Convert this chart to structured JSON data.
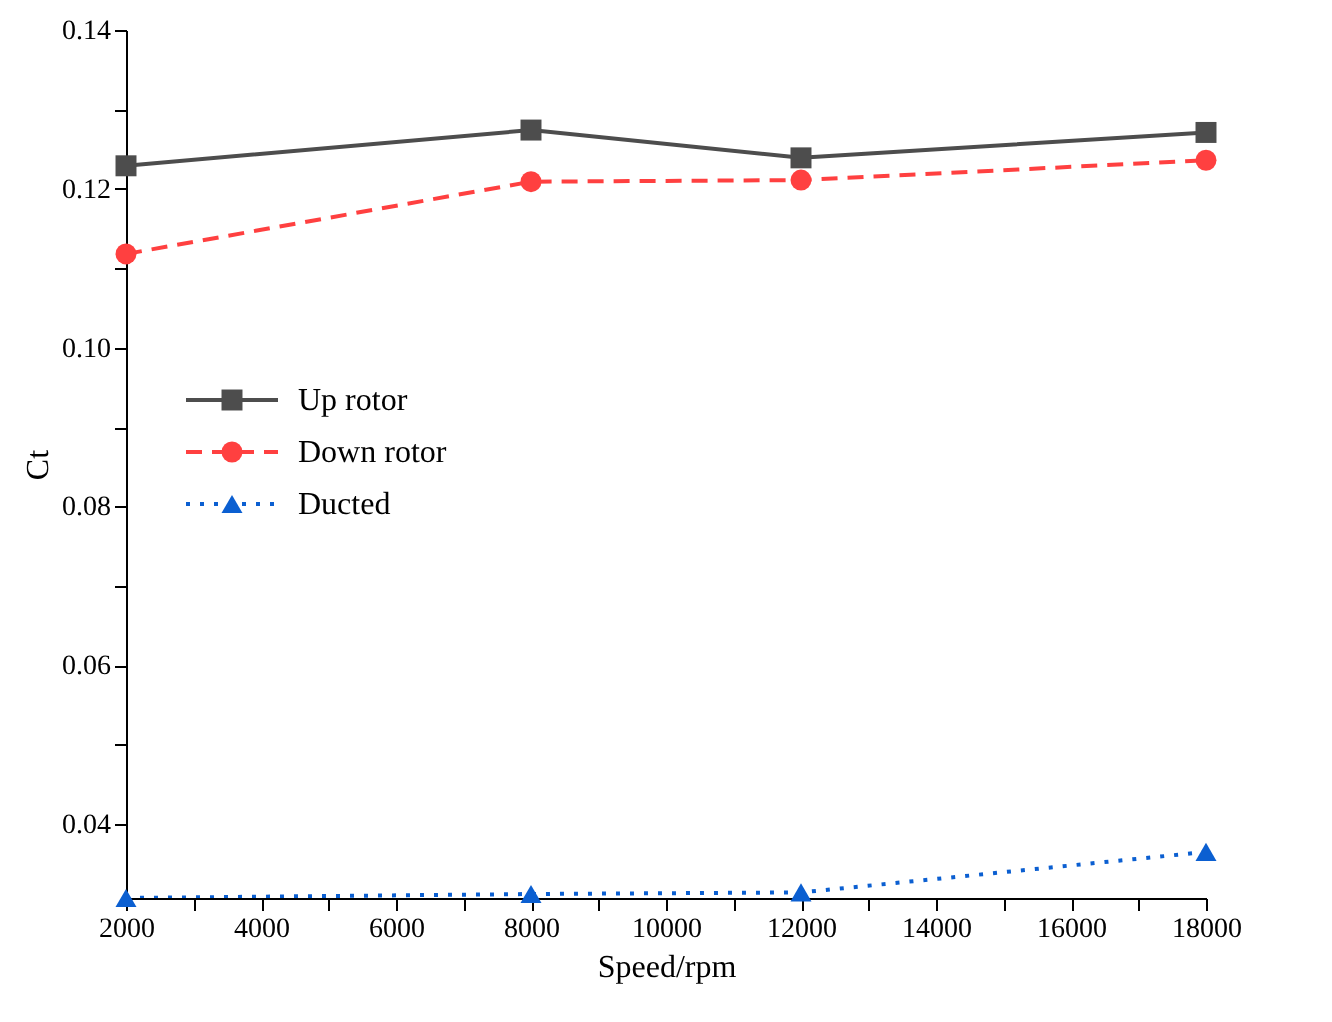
{
  "chart_data": {
    "type": "line",
    "xlabel": "Speed/rpm",
    "ylabel": "Ct",
    "x": [
      2000,
      8000,
      12000,
      18000
    ],
    "xlim": [
      2000,
      18000
    ],
    "ylim": [
      0.0307,
      0.14
    ],
    "xticks": [
      2000,
      {
        "value": 3000,
        "label": null
      },
      4000,
      {
        "value": 5000,
        "label": null
      },
      6000,
      {
        "value": 7000,
        "label": null
      },
      8000,
      {
        "value": 9000,
        "label": null
      },
      10000,
      {
        "value": 11000,
        "label": null
      },
      12000,
      {
        "value": 13000,
        "label": null
      },
      14000,
      {
        "value": 15000,
        "label": null
      },
      16000,
      {
        "value": 17000,
        "label": null
      },
      18000
    ],
    "yticks": [
      {
        "value": 0.04,
        "label": "0.04"
      },
      {
        "value": 0.05,
        "label": null
      },
      {
        "value": 0.06,
        "label": "0.06"
      },
      {
        "value": 0.07,
        "label": null
      },
      {
        "value": 0.08,
        "label": "0.08"
      },
      {
        "value": 0.09,
        "label": null
      },
      {
        "value": 0.1,
        "label": "0.10"
      },
      {
        "value": 0.11,
        "label": null
      },
      {
        "value": 0.12,
        "label": "0.12"
      },
      {
        "value": 0.13,
        "label": null
      },
      {
        "value": 0.14,
        "label": "0.14"
      }
    ],
    "grid": false,
    "legend": "left",
    "series": [
      {
        "name": "Up rotor",
        "color": "#4d4d4d",
        "marker": "square",
        "line_style": "solid",
        "values": [
          0.1229,
          0.1274,
          0.1239,
          0.1271
        ]
      },
      {
        "name": "Down rotor",
        "color": "#ff4040",
        "marker": "circle",
        "line_style": "dashed",
        "values": [
          0.1118,
          0.1209,
          0.1211,
          0.1236
        ]
      },
      {
        "name": "Ducted",
        "color": "#0b5fd1",
        "marker": "triangle",
        "line_style": "dotted",
        "values": [
          0.0307,
          0.0312,
          0.0314,
          0.0365
        ]
      }
    ]
  }
}
